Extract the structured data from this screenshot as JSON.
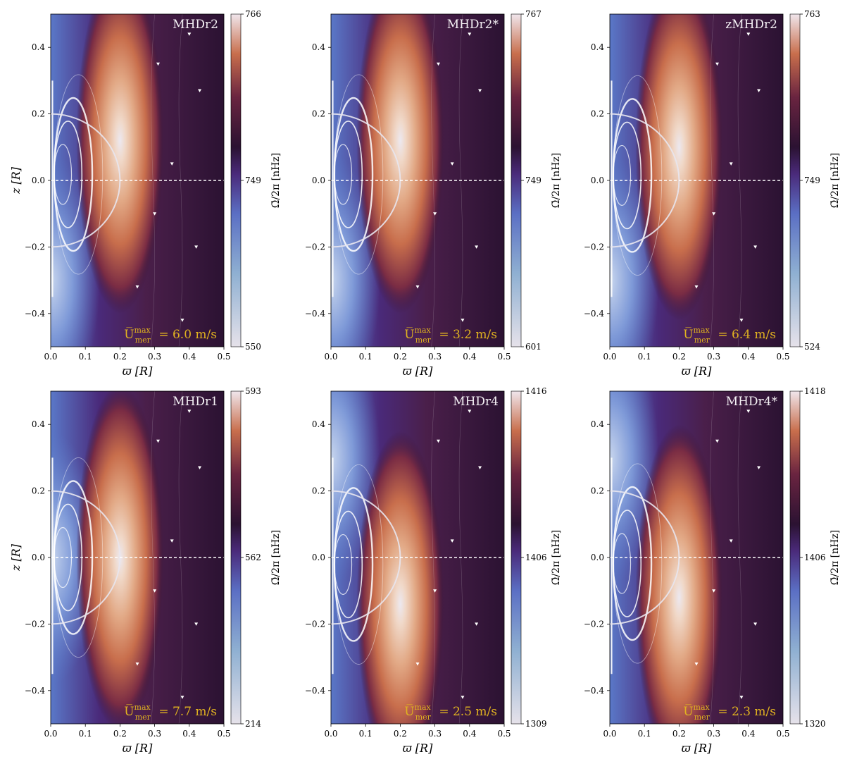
{
  "figure": {
    "panels_layout": "2 rows x 3 columns",
    "colormap": "twilight_shifted",
    "cbar_unit_label": "Ω̄/2π [nHz]"
  },
  "chart_data": [
    {
      "type": "heatmap",
      "name": "MHDr2",
      "xlabel": "ϖ [R]",
      "ylabel": "z [R]",
      "xlim": [
        0.0,
        0.5
      ],
      "ylim": [
        -0.5,
        0.5
      ],
      "x_ticks": [
        "0.0",
        "0.1",
        "0.2",
        "0.3",
        "0.4",
        "0.5"
      ],
      "y_ticks": [
        "−0.4",
        "−0.2",
        "0.0",
        "0.2",
        "0.4"
      ],
      "colorbar": {
        "min": 550,
        "mid": 749,
        "max": 766,
        "label": "Ω̄/2π [nHz]"
      },
      "annotation_prefix": "U̅",
      "annotation_sup": "max",
      "annotation_sub": "mer",
      "annotation_value": "= 6.0 m/s",
      "features": {
        "hot_spot_z": 0.12,
        "equator_line": "dashed",
        "tangent_circle_radius": 0.2
      }
    },
    {
      "type": "heatmap",
      "name": "MHDr2*",
      "xlabel": "ϖ [R]",
      "ylabel": "",
      "xlim": [
        0.0,
        0.5
      ],
      "ylim": [
        -0.5,
        0.5
      ],
      "x_ticks": [
        "0.0",
        "0.1",
        "0.2",
        "0.3",
        "0.4",
        "0.5"
      ],
      "y_ticks": [
        "−0.4",
        "−0.2",
        "0.0",
        "0.2",
        "0.4"
      ],
      "colorbar": {
        "min": 601,
        "mid": 749,
        "max": 767,
        "label": "Ω̄/2π [nHz]"
      },
      "annotation_prefix": "U̅",
      "annotation_sup": "max",
      "annotation_sub": "mer",
      "annotation_value": "= 3.2 m/s",
      "features": {
        "hot_spot_z": 0.12,
        "equator_line": "dashed",
        "tangent_circle_radius": 0.2
      }
    },
    {
      "type": "heatmap",
      "name": "zMHDr2",
      "xlabel": "ϖ [R]",
      "ylabel": "",
      "xlim": [
        0.0,
        0.5
      ],
      "ylim": [
        -0.5,
        0.5
      ],
      "x_ticks": [
        "0.0",
        "0.1",
        "0.2",
        "0.3",
        "0.4",
        "0.5"
      ],
      "y_ticks": [
        "−0.4",
        "−0.2",
        "0.0",
        "0.2",
        "0.4"
      ],
      "colorbar": {
        "min": 524,
        "mid": 749,
        "max": 763,
        "label": "Ω̄/2π [nHz]"
      },
      "annotation_prefix": "U̅",
      "annotation_sup": "max",
      "annotation_sub": "mer",
      "annotation_value": "= 6.4 m/s",
      "features": {
        "hot_spot_z": 0.1,
        "equator_line": "dashed",
        "tangent_circle_radius": 0.2
      }
    },
    {
      "type": "heatmap",
      "name": "MHDr1",
      "xlabel": "ϖ [R]",
      "ylabel": "z [R]",
      "xlim": [
        0.0,
        0.5
      ],
      "ylim": [
        -0.5,
        0.5
      ],
      "x_ticks": [
        "0.0",
        "0.1",
        "0.2",
        "0.3",
        "0.4",
        "0.5"
      ],
      "y_ticks": [
        "−0.4",
        "−0.2",
        "0.0",
        "0.2",
        "0.4"
      ],
      "colorbar": {
        "min": 214,
        "mid": 562,
        "max": 593,
        "label": "Ω̄/2π [nHz]"
      },
      "annotation_prefix": "U̅",
      "annotation_sup": "max",
      "annotation_sub": "mer",
      "annotation_value": "= 7.7 m/s",
      "features": {
        "hot_spot_z": 0.0,
        "equator_line": "dashed",
        "tangent_circle_radius": 0.2
      }
    },
    {
      "type": "heatmap",
      "name": "MHDr4",
      "xlabel": "ϖ [R]",
      "ylabel": "",
      "xlim": [
        0.0,
        0.5
      ],
      "ylim": [
        -0.5,
        0.5
      ],
      "x_ticks": [
        "0.0",
        "0.1",
        "0.2",
        "0.3",
        "0.4",
        "0.5"
      ],
      "y_ticks": [
        "−0.4",
        "−0.2",
        "0.0",
        "0.2",
        "0.4"
      ],
      "colorbar": {
        "min": 1309,
        "mid": 1406,
        "max": 1416,
        "label": "Ω̄/2π [nHz]"
      },
      "annotation_prefix": "U̅",
      "annotation_sup": "max",
      "annotation_sub": "mer",
      "annotation_value": "= 2.5 m/s",
      "features": {
        "hot_spot_z": -0.14,
        "equator_line": "dashed",
        "tangent_circle_radius": 0.2
      }
    },
    {
      "type": "heatmap",
      "name": "MHDr4*",
      "xlabel": "ϖ [R]",
      "ylabel": "",
      "xlim": [
        0.0,
        0.5
      ],
      "ylim": [
        -0.5,
        0.5
      ],
      "x_ticks": [
        "0.0",
        "0.1",
        "0.2",
        "0.3",
        "0.4",
        "0.5"
      ],
      "y_ticks": [
        "−0.4",
        "−0.2",
        "0.0",
        "0.2",
        "0.4"
      ],
      "colorbar": {
        "min": 1320,
        "mid": 1406,
        "max": 1418,
        "label": "Ω̄/2π [nHz]"
      },
      "annotation_prefix": "U̅",
      "annotation_sup": "max",
      "annotation_sub": "mer",
      "annotation_value": "= 2.3 m/s",
      "features": {
        "hot_spot_z": -0.12,
        "equator_line": "dashed",
        "tangent_circle_radius": 0.2
      }
    }
  ],
  "colors": {
    "cmap_dark": "#2b1232",
    "cmap_mid_purple": "#4a2a7a",
    "cmap_blue": "#5a78c8",
    "cmap_light": "#ece8f0",
    "cmap_orange": "#c86e4c",
    "cmap_peach": "#e2a986",
    "annotation": "#e0b220",
    "stream": "#ffffff"
  }
}
